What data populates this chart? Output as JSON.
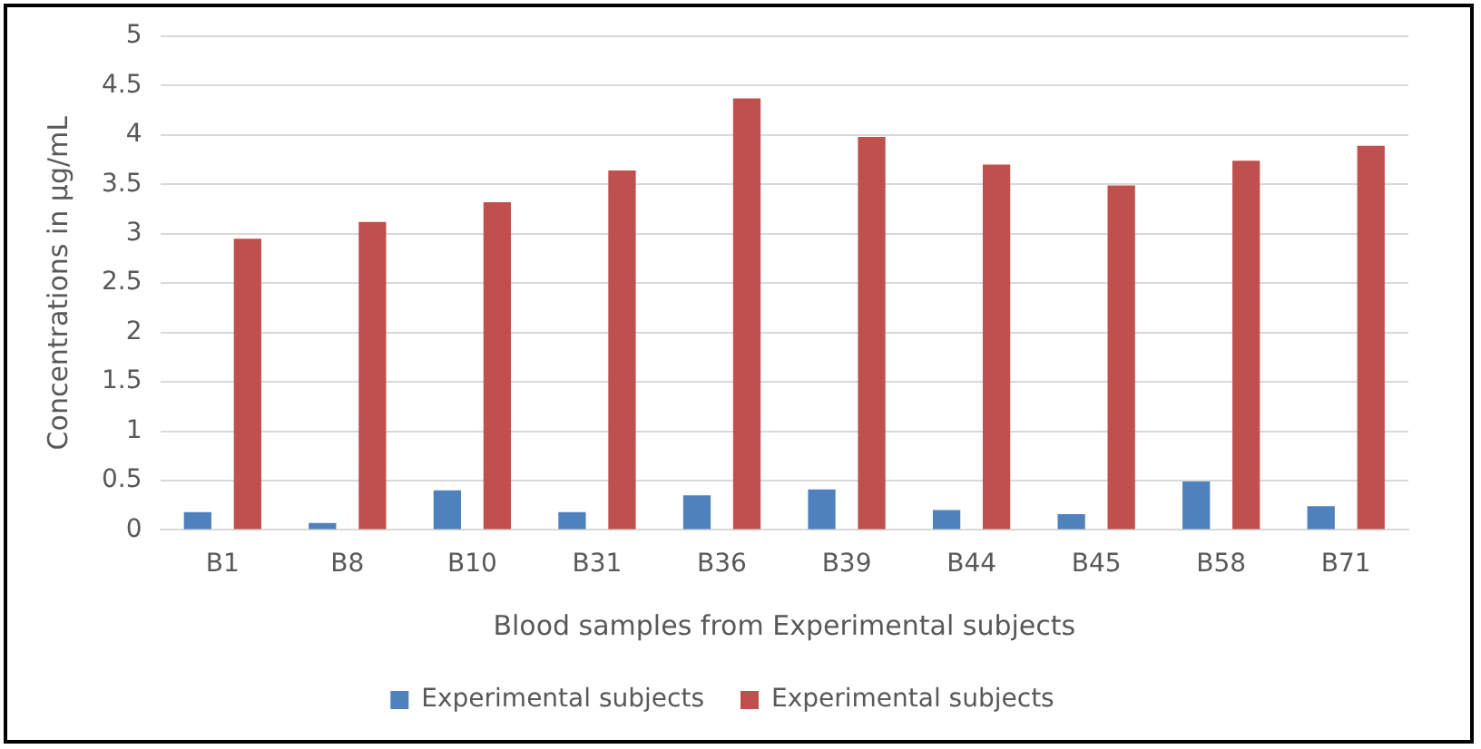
{
  "chart_data": {
    "type": "bar",
    "xlabel": "Blood samples from Experimental subjects",
    "ylabel": "Concentrations in µg/mL",
    "categories": [
      "B1",
      "B8",
      "B10",
      "B31",
      "B36",
      "B39",
      "B44",
      "B45",
      "B58",
      "B71"
    ],
    "series": [
      {
        "name": "Experimental subjects",
        "color": "#4f81bd",
        "values": [
          0.18,
          0.07,
          0.4,
          0.18,
          0.35,
          0.41,
          0.2,
          0.16,
          0.49,
          0.24
        ]
      },
      {
        "name": "Experimental subjects",
        "color": "#c0504d",
        "values": [
          2.95,
          3.12,
          3.32,
          3.64,
          4.37,
          3.98,
          3.7,
          3.49,
          3.74,
          3.89
        ]
      }
    ],
    "ylim": [
      0,
      5
    ],
    "yticks": [
      0,
      0.5,
      1,
      1.5,
      2,
      2.5,
      3,
      3.5,
      4,
      4.5,
      5
    ],
    "grid": "y",
    "legend": "bottom"
  }
}
